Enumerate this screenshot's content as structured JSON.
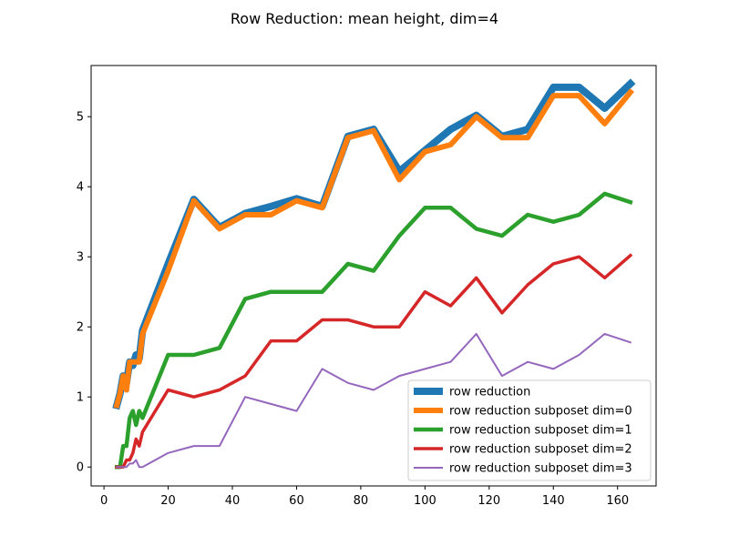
{
  "chart_data": {
    "type": "line",
    "title": "Row Reduction: mean height, dim=4",
    "xlabel": "",
    "ylabel": "",
    "xlim": [
      -4,
      172
    ],
    "ylim": [
      -0.27,
      5.73
    ],
    "xticks": [
      0,
      20,
      40,
      60,
      80,
      100,
      120,
      140,
      160
    ],
    "yticks": [
      0,
      1,
      2,
      3,
      4,
      5
    ],
    "grid": false,
    "legend_position": "lower-right",
    "x": [
      4,
      5,
      6,
      7,
      8,
      9,
      10,
      11,
      12,
      20,
      28,
      36,
      44,
      52,
      60,
      68,
      76,
      84,
      92,
      100,
      108,
      116,
      124,
      132,
      140,
      148,
      156,
      164
    ],
    "series": [
      {
        "name": "row reduction",
        "color": "#1f77b4",
        "values": [
          0.88,
          1.05,
          1.3,
          1.2,
          1.5,
          1.45,
          1.6,
          1.55,
          1.95,
          2.9,
          3.82,
          3.42,
          3.62,
          3.72,
          3.83,
          3.72,
          4.72,
          4.82,
          4.22,
          4.52,
          4.82,
          5.02,
          4.72,
          4.82,
          5.42,
          5.42,
          5.12,
          5.47
        ]
      },
      {
        "name": "row reduction subposet dim=0",
        "color": "#ff7f0e",
        "values": [
          0.88,
          1.05,
          1.3,
          1.1,
          1.5,
          1.5,
          1.5,
          1.5,
          1.9,
          2.8,
          3.8,
          3.4,
          3.6,
          3.6,
          3.8,
          3.7,
          4.7,
          4.8,
          4.1,
          4.5,
          4.6,
          5.0,
          4.7,
          4.7,
          5.3,
          5.3,
          4.9,
          5.35
        ]
      },
      {
        "name": "row reduction subposet dim=1",
        "color": "#2ca02c",
        "values": [
          0.0,
          0.0,
          0.3,
          0.3,
          0.7,
          0.8,
          0.6,
          0.8,
          0.7,
          1.6,
          1.6,
          1.7,
          2.4,
          2.5,
          2.5,
          2.5,
          2.9,
          2.8,
          3.3,
          3.7,
          3.7,
          3.4,
          3.3,
          3.6,
          3.5,
          3.6,
          3.9,
          3.78
        ]
      },
      {
        "name": "row reduction subposet dim=2",
        "color": "#d62728",
        "values": [
          0.0,
          0.0,
          0.0,
          0.1,
          0.1,
          0.2,
          0.4,
          0.3,
          0.5,
          1.1,
          1.0,
          1.1,
          1.3,
          1.8,
          1.8,
          2.1,
          2.1,
          2.0,
          2.0,
          2.5,
          2.3,
          2.7,
          2.2,
          2.6,
          2.9,
          3.0,
          2.7,
          3.02
        ]
      },
      {
        "name": "row reduction subposet dim=3",
        "color": "#9467bd",
        "values": [
          0.0,
          0.0,
          0.0,
          0.0,
          0.05,
          0.05,
          0.1,
          0.0,
          0.0,
          0.2,
          0.3,
          0.3,
          1.0,
          0.9,
          0.8,
          1.4,
          1.2,
          1.1,
          1.3,
          1.4,
          1.5,
          1.9,
          1.3,
          1.5,
          1.4,
          1.6,
          1.9,
          1.78
        ]
      }
    ]
  }
}
